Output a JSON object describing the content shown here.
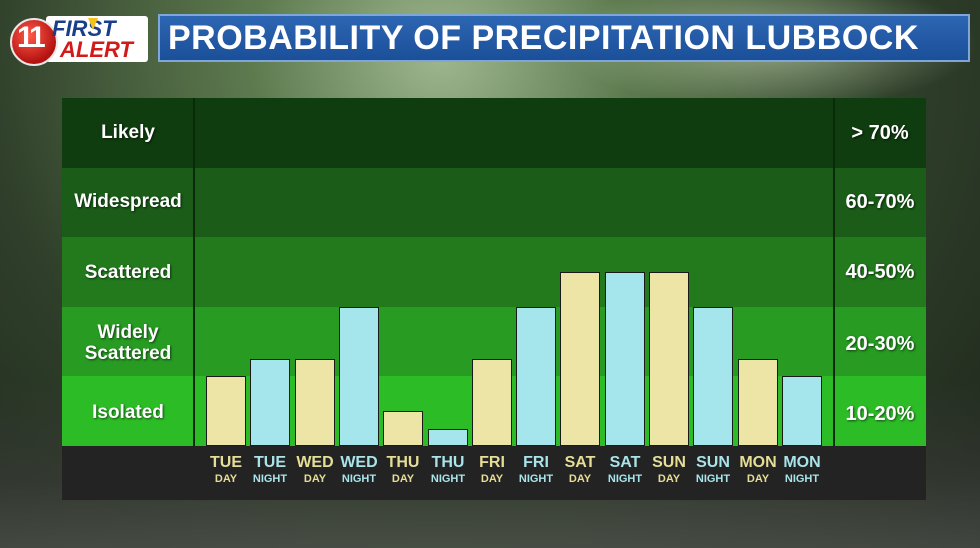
{
  "title": "PROBABILITY OF PRECIPITATION LUBBOCK",
  "logo": {
    "number": "11",
    "line1": "FIRST",
    "line2": "ALERT"
  },
  "colors": {
    "day_bar": "#ece5a6",
    "night_bar": "#a5e6ec",
    "title_bar": "#1f5aa6"
  },
  "categories": [
    {
      "name": "Likely",
      "range": "> 70%"
    },
    {
      "name": "Widespread",
      "range": "60-70%"
    },
    {
      "name": "Scattered",
      "range": "40-50%"
    },
    {
      "name": "Widely Scattered",
      "range": "20-30%"
    },
    {
      "name": "Isolated",
      "range": "10-20%"
    }
  ],
  "chart_data": {
    "type": "bar",
    "title": "PROBABILITY OF PRECIPITATION LUBBOCK",
    "ylabel": "",
    "ylim": [
      0,
      5
    ],
    "y_tick_labels": [
      "Isolated",
      "Widely Scattered",
      "Scattered",
      "Widespread",
      "Likely"
    ],
    "y_range_labels": [
      "10-20%",
      "20-30%",
      "40-50%",
      "60-70%",
      "> 70%"
    ],
    "bars": [
      {
        "day": "TUE",
        "period": "DAY",
        "value": 1.0
      },
      {
        "day": "TUE",
        "period": "NIGHT",
        "value": 1.25
      },
      {
        "day": "WED",
        "period": "DAY",
        "value": 1.25
      },
      {
        "day": "WED",
        "period": "NIGHT",
        "value": 2.0
      },
      {
        "day": "THU",
        "period": "DAY",
        "value": 0.5
      },
      {
        "day": "THU",
        "period": "NIGHT",
        "value": 0.25
      },
      {
        "day": "FRI",
        "period": "DAY",
        "value": 1.25
      },
      {
        "day": "FRI",
        "period": "NIGHT",
        "value": 2.0
      },
      {
        "day": "SAT",
        "period": "DAY",
        "value": 2.5
      },
      {
        "day": "SAT",
        "period": "NIGHT",
        "value": 2.5
      },
      {
        "day": "SUN",
        "period": "DAY",
        "value": 2.5
      },
      {
        "day": "SUN",
        "period": "NIGHT",
        "value": 2.0
      },
      {
        "day": "MON",
        "period": "DAY",
        "value": 1.25
      },
      {
        "day": "MON",
        "period": "NIGHT",
        "value": 1.0
      }
    ]
  }
}
